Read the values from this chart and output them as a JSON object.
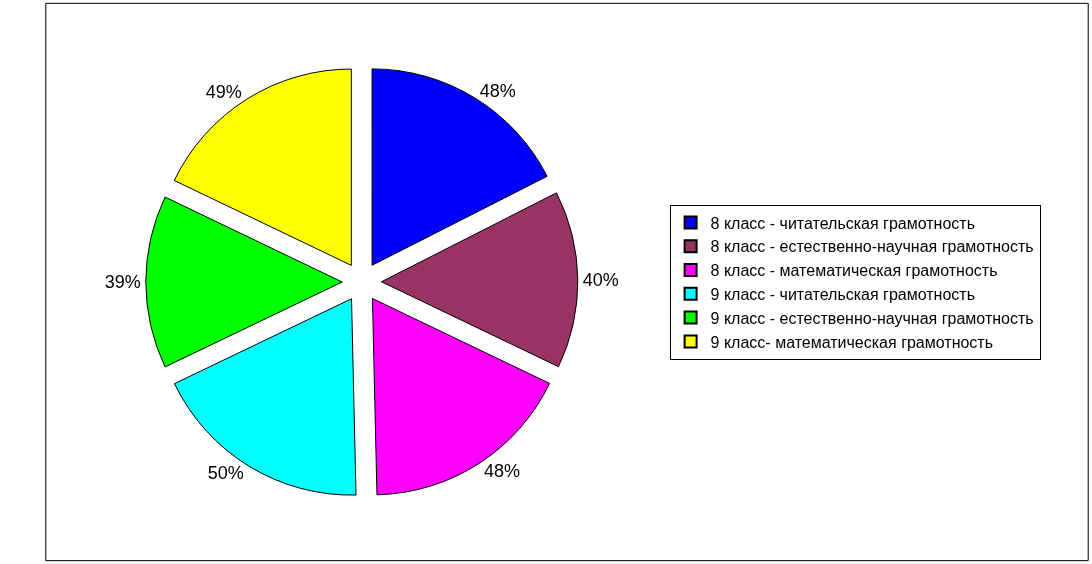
{
  "chart_data": {
    "type": "pie",
    "categories": [
      "8 класс - читательская грамотность",
      "8 класс - естественно-научная грамотность",
      "8 класс - математическая грамотность",
      "9 класс - читательская грамотность",
      "9 класс - естественно-научная грамотность",
      "9 класс- математическая грамотность"
    ],
    "values": [
      48,
      40,
      48,
      50,
      39,
      49
    ],
    "value_labels": [
      "48%",
      "40%",
      "48%",
      "50%",
      "39%",
      "49%"
    ],
    "colors": [
      "#0000ff",
      "#993366",
      "#ff00ff",
      "#00ffff",
      "#00ff00",
      "#ffff00"
    ],
    "legend": "right"
  }
}
